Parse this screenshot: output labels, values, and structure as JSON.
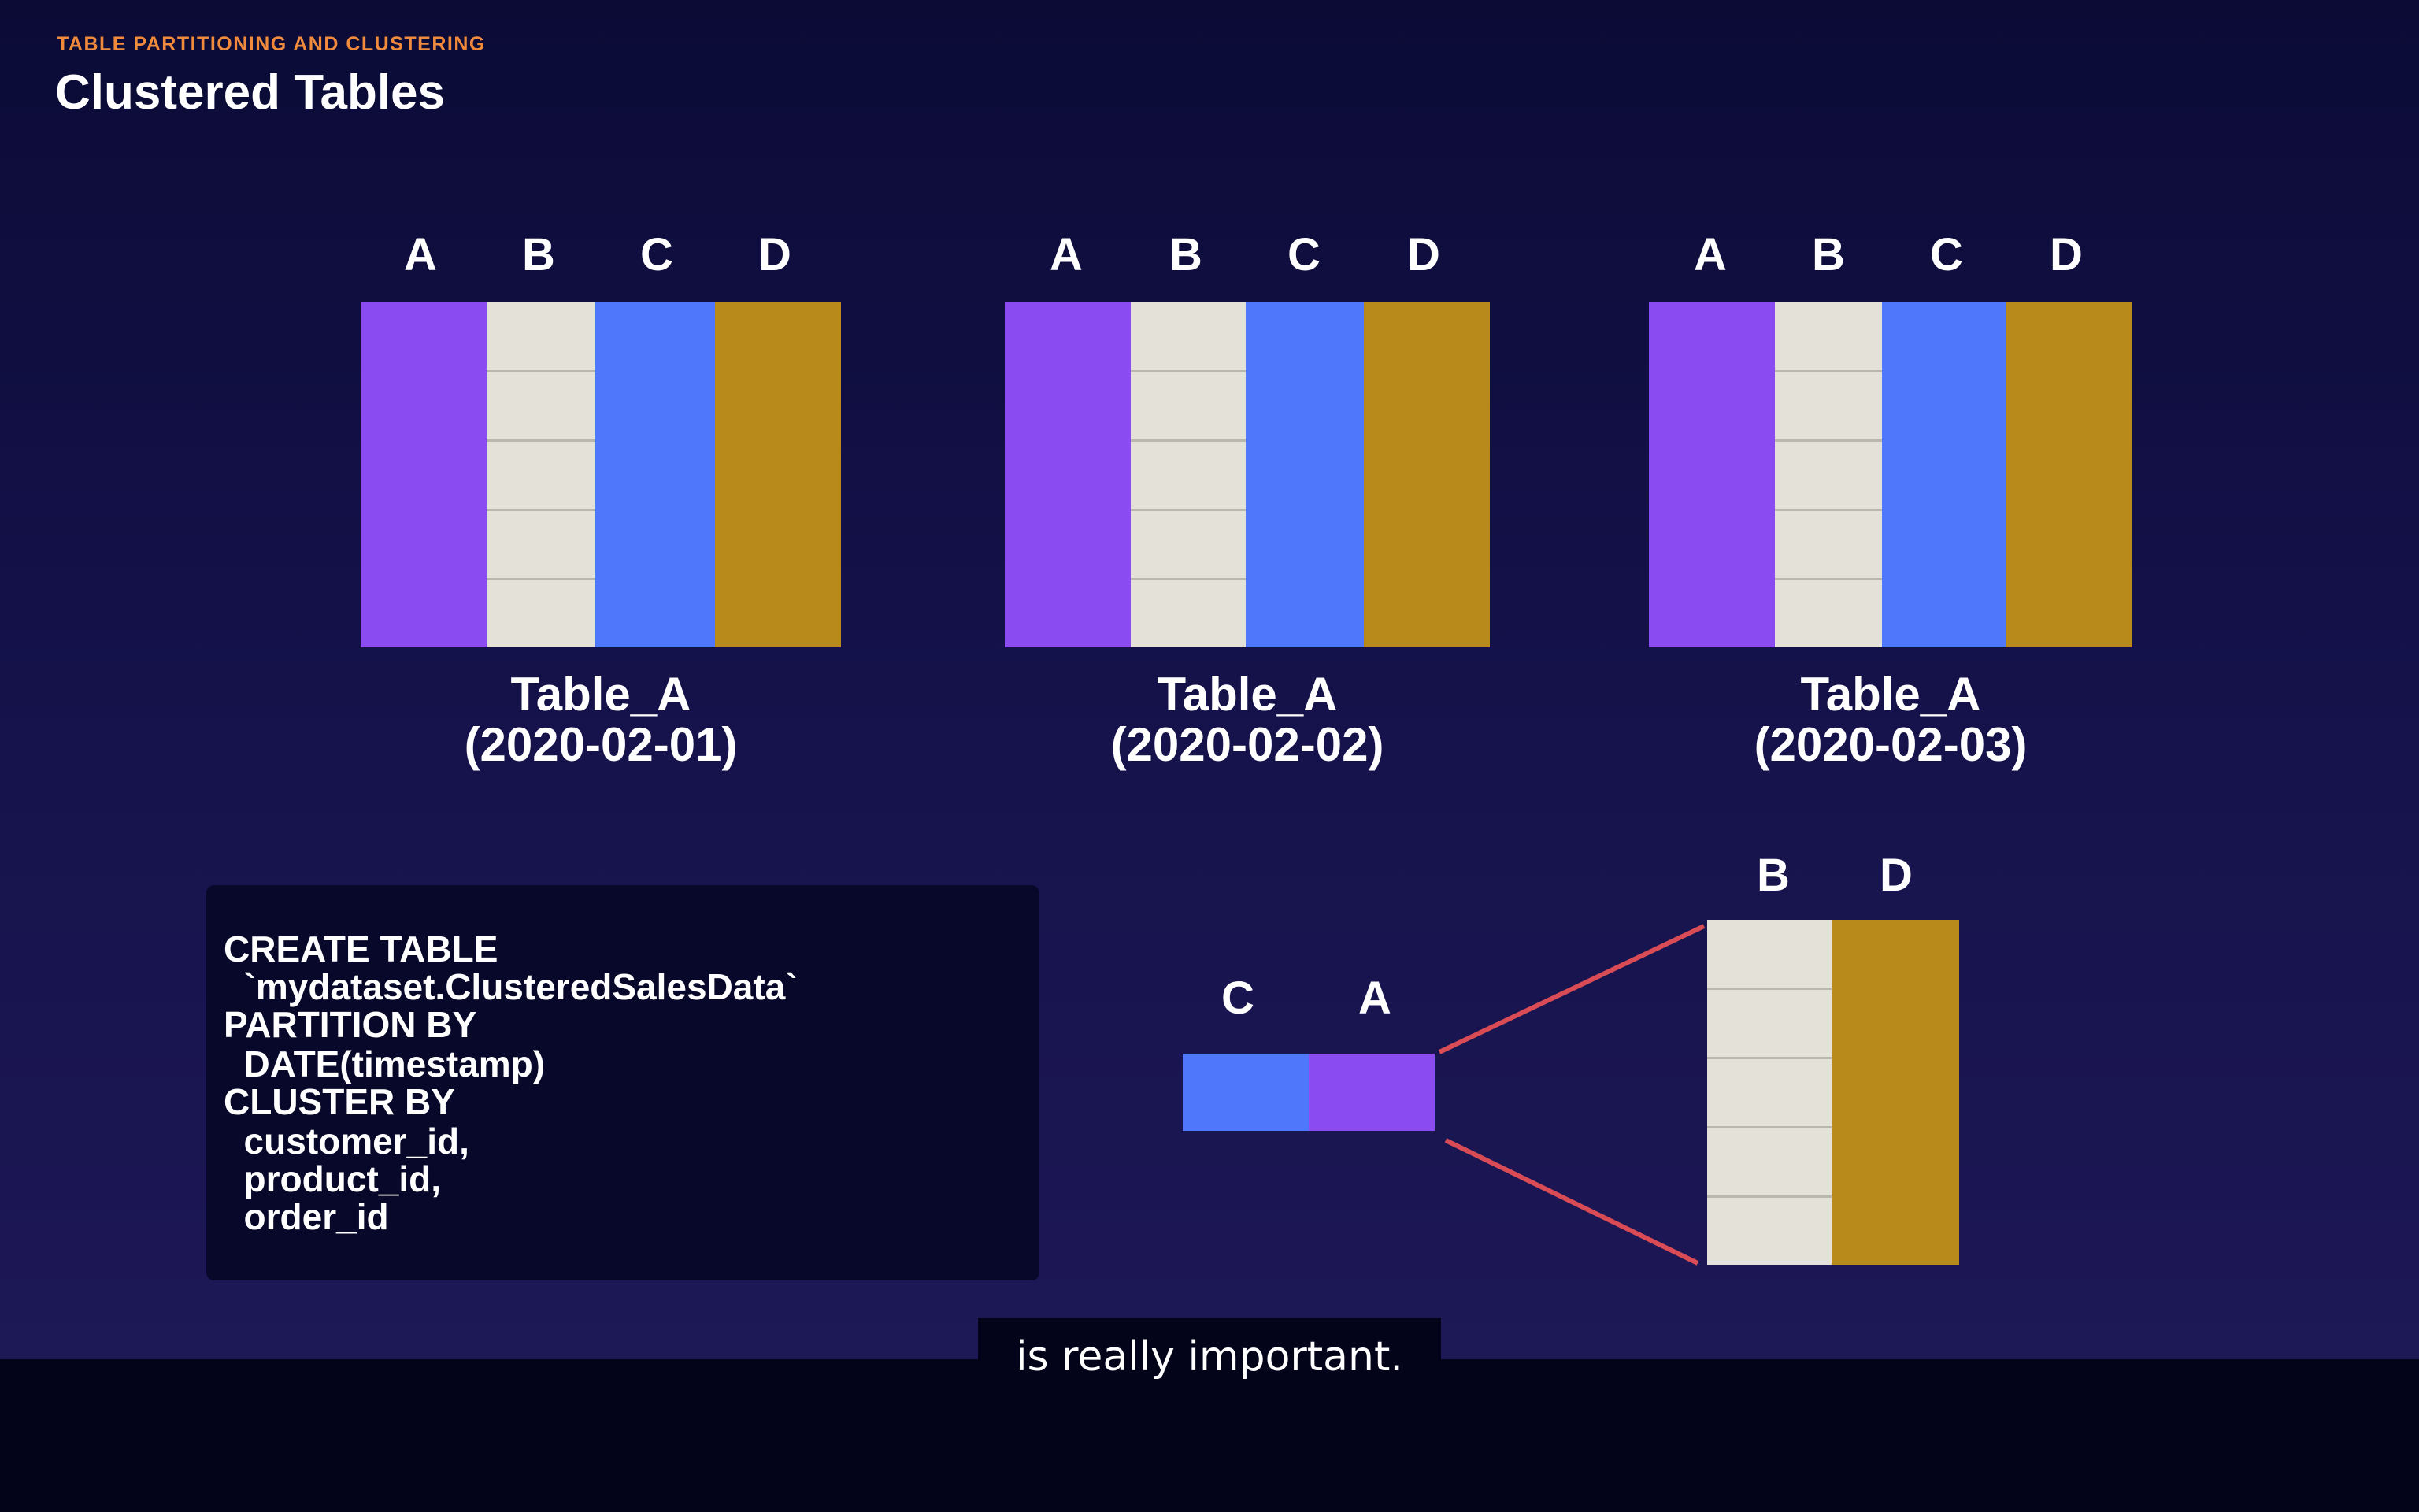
{
  "header": {
    "eyebrow": "TABLE PARTITIONING AND CLUSTERING",
    "title": "Clustered Tables"
  },
  "tables": [
    {
      "columns": [
        "A",
        "B",
        "C",
        "D"
      ],
      "name": "Table_A",
      "date": "(2020-02-01)"
    },
    {
      "columns": [
        "A",
        "B",
        "C",
        "D"
      ],
      "name": "Table_A",
      "date": "(2020-02-02)"
    },
    {
      "columns": [
        "A",
        "B",
        "C",
        "D"
      ],
      "name": "Table_A",
      "date": "(2020-02-03)"
    }
  ],
  "code": {
    "lines": [
      "CREATE TABLE",
      "  `mydataset.ClusteredSalesData`",
      "PARTITION BY",
      "  DATE(timestamp)",
      "CLUSTER BY",
      "  customer_id,",
      "  product_id,",
      "  order_id"
    ]
  },
  "cluster_diagram": {
    "key_columns": [
      "C",
      "A"
    ],
    "expanded_columns": [
      "B",
      "D"
    ]
  },
  "colors": {
    "column_a": "#8a4cf0",
    "column_b": "#e4e1d8",
    "column_c": "#4e77fb",
    "column_d": "#b88a1c",
    "eyebrow": "#f08a3c",
    "connector": "#d94b55"
  },
  "caption": {
    "text": "is really important."
  }
}
